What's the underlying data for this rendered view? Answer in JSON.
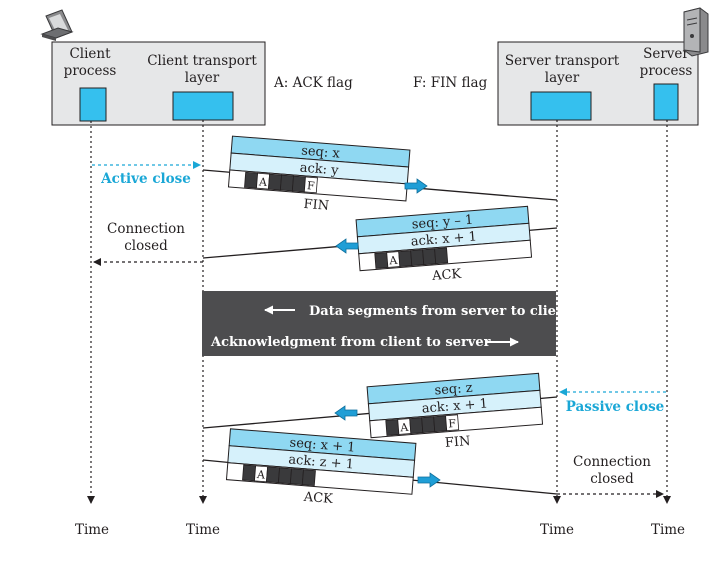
{
  "entities": {
    "client_process": "Client\nprocess",
    "client_transport": "Client transport\nlayer",
    "server_transport": "Server transport\nlayer",
    "server_process": "Server\nprocess"
  },
  "legend": {
    "ack_flag": "A: ACK flag",
    "fin_flag": "F: FIN flag"
  },
  "events": {
    "active_close": "Active close",
    "passive_close": "Passive close",
    "client_conn_closed": "Connection\nclosed",
    "server_conn_closed": "Connection\nclosed"
  },
  "segments": [
    {
      "seq": "seq: x",
      "ack": "ack: y",
      "name": "FIN",
      "flags": [
        "A",
        "F"
      ]
    },
    {
      "seq": "seq: y – 1",
      "ack": "ack: x + 1",
      "name": "ACK",
      "flags": [
        "A"
      ]
    },
    {
      "seq": "seq: z",
      "ack": "ack: x + 1",
      "name": "FIN",
      "flags": [
        "A",
        "F"
      ]
    },
    {
      "seq": "seq: x + 1",
      "ack": "ack: z + 1",
      "name": "ACK",
      "flags": [
        "A"
      ]
    }
  ],
  "data_band": {
    "server_to_client": "Data segments from server to client",
    "client_to_server": "Acknowledgment from client to server"
  },
  "time_label": "Time",
  "colors": {
    "box_fill": "#e6e7e8",
    "process_blue": "#35c0ee",
    "header_top": "#8fd8f2",
    "header_bottom": "#d6f1fb",
    "annotation_blue": "#1aa7d6",
    "band_fill": "#4d4d4f",
    "arrow_blue": "#1f9ed6"
  }
}
